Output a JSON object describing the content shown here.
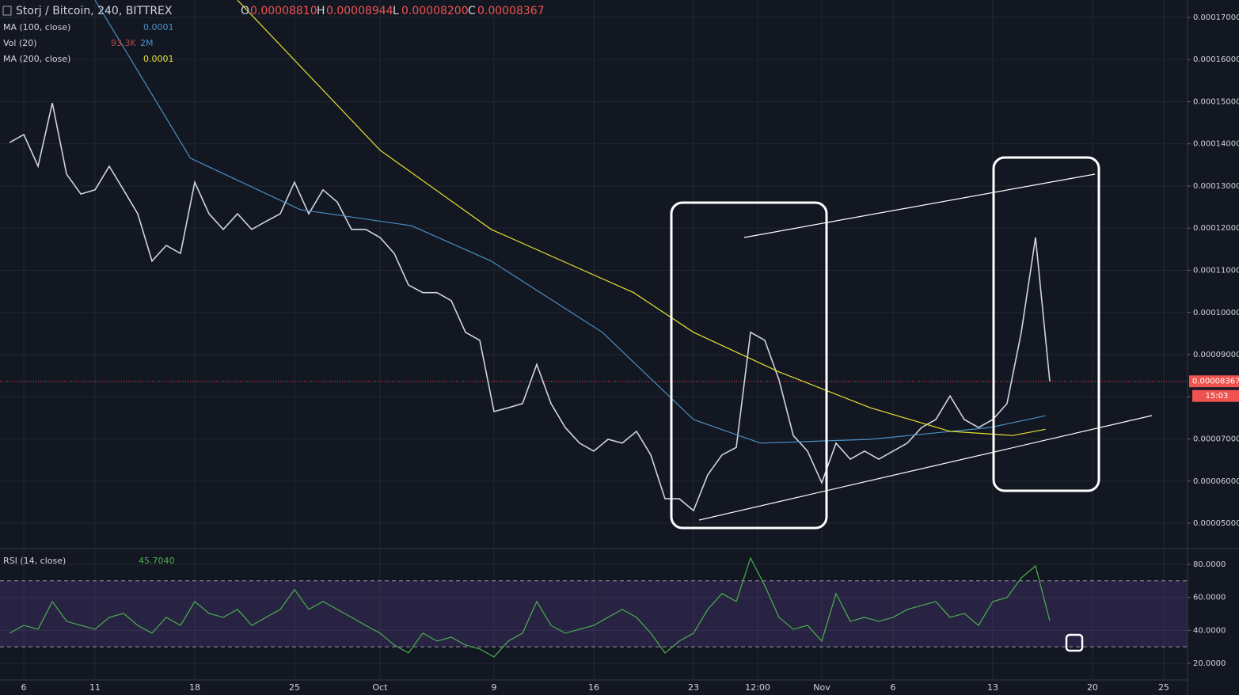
{
  "header": {
    "symbol": "Storj / Bitcoin, 240, BITTREX",
    "o_label": "O",
    "o": "0.00008810",
    "h_label": "H",
    "h": "0.00008944",
    "l_label": "L",
    "l": "0.00008200",
    "c_label": "C",
    "c": "0.00008367",
    "vol_label": "Vol (20)",
    "vol_value": "93.3K",
    "vol_ma": "2M",
    "rsi_label": "RSI (14, close)",
    "rsi_value": "45.7040",
    "countdown": "15:03"
  },
  "chart_data": [
    {
      "type": "line",
      "grid": true,
      "last_price": 8.367e-05,
      "xlim": [
        4.33,
        87.67
      ],
      "xticks": [
        {
          "value": 6,
          "label": "6"
        },
        {
          "value": 11,
          "label": "11"
        },
        {
          "value": 18,
          "label": "18"
        },
        {
          "value": 25,
          "label": "25"
        },
        {
          "value": 31,
          "label": "Oct"
        },
        {
          "value": 39,
          "label": "9"
        },
        {
          "value": 46,
          "label": "16"
        },
        {
          "value": 53,
          "label": "23"
        },
        {
          "value": 57.5,
          "label": "12:00"
        },
        {
          "value": 62,
          "label": "Nov"
        },
        {
          "value": 67,
          "label": "6"
        },
        {
          "value": 74,
          "label": "13"
        },
        {
          "value": 81,
          "label": "20"
        },
        {
          "value": 86,
          "label": "25"
        }
      ],
      "ylim": [
        4.418e-05,
        0.00017413
      ],
      "yticks": [
        {
          "value": 5e-05,
          "label": "0.00005000"
        },
        {
          "value": 6e-05,
          "label": "0.00006000"
        },
        {
          "value": 7e-05,
          "label": "0.00007000"
        },
        {
          "value": 8e-05,
          "label": "0.00008000"
        },
        {
          "value": 9e-05,
          "label": "0.00009000"
        },
        {
          "value": 0.0001,
          "label": "0.00010000"
        },
        {
          "value": 0.00011,
          "label": "0.00011000"
        },
        {
          "value": 0.00012,
          "label": "0.00012000"
        },
        {
          "value": 0.00013,
          "label": "0.00013000"
        },
        {
          "value": 0.00014,
          "label": "0.00014000"
        },
        {
          "value": 0.00015,
          "label": "0.00015000"
        },
        {
          "value": 0.00016,
          "label": "0.00016000"
        },
        {
          "value": 0.00017,
          "label": "0.00017000"
        }
      ],
      "series": [
        {
          "name": "Storj / Bitcoin",
          "color": "#d0d4dc",
          "x": [
            5,
            6,
            7,
            8,
            9,
            10,
            11,
            12,
            13,
            14,
            15,
            16,
            17,
            18,
            19,
            20,
            21,
            22,
            23,
            24,
            25,
            26,
            27,
            28,
            29,
            30,
            31,
            32,
            33,
            34,
            35,
            36,
            37,
            38,
            39,
            40,
            41,
            42,
            43,
            44,
            45,
            46,
            47,
            48,
            49,
            50,
            51,
            52,
            53,
            54,
            55,
            56,
            57,
            58,
            59,
            60,
            61,
            62,
            63,
            64,
            65,
            66,
            67,
            68,
            69,
            70,
            71,
            72,
            73,
            74,
            75,
            76,
            77,
            78
          ],
          "values": [
            0.0001403,
            0.0001422,
            0.0001347,
            0.0001497,
            0.0001328,
            0.0001281,
            0.0001291,
            0.0001347,
            0.0001291,
            0.0001234,
            0.0001122,
            0.0001159,
            0.000114,
            0.0001309,
            0.0001234,
            0.0001197,
            0.0001234,
            0.0001197,
            0.0001216,
            0.0001234,
            0.0001309,
            0.0001234,
            0.0001291,
            0.0001262,
            0.0001197,
            0.0001197,
            0.0001178,
            0.000114,
            0.0001065,
            0.0001047,
            0.0001047,
            0.0001028,
            9.53e-05,
            9.34e-05,
            7.65e-05,
            7.74e-05,
            7.84e-05,
            8.77e-05,
            7.84e-05,
            7.27e-05,
            6.9e-05,
            6.71e-05,
            6.99e-05,
            6.9e-05,
            7.18e-05,
            6.62e-05,
            5.58e-05,
            5.58e-05,
            5.3e-05,
            6.15e-05,
            6.62e-05,
            6.8e-05,
            9.53e-05,
            9.34e-05,
            8.4e-05,
            7.08e-05,
            6.71e-05,
            5.96e-05,
            6.9e-05,
            6.52e-05,
            6.71e-05,
            6.52e-05,
            6.71e-05,
            6.9e-05,
            7.27e-05,
            7.46e-05,
            8.02e-05,
            7.46e-05,
            7.27e-05,
            7.46e-05,
            7.84e-05,
            9.53e-05,
            0.0001178,
            8.367e-05
          ]
        },
        {
          "name": "MA (100, close)",
          "legend_value": "0.0001",
          "color": "#4a90c2",
          "x": [
            11,
            17.7,
            25.4,
            33.2,
            38.8,
            46.6,
            53,
            57.7,
            65.4,
            73.8,
            77.7
          ],
          "values": [
            0.0001741,
            0.0001366,
            0.0001244,
            0.0001206,
            0.0001122,
            9.53e-05,
            7.46e-05,
            6.9e-05,
            6.99e-05,
            7.27e-05,
            7.55e-05
          ]
        },
        {
          "name": "MA (200, close)",
          "legend_value": "0.0001",
          "color": "#e6e030",
          "x": [
            21,
            31,
            38.8,
            48.8,
            53,
            59,
            65.4,
            71,
            75.4,
            77.7
          ],
          "values": [
            0.0001741,
            0.0001385,
            0.0001197,
            0.0001047,
            9.53e-05,
            8.59e-05,
            7.74e-05,
            7.18e-05,
            7.08e-05,
            7.23e-05
          ]
        }
      ]
    },
    {
      "type": "line",
      "grid": true,
      "band": [
        30,
        70
      ],
      "band_color": "#7e57c2",
      "xlim": [
        4.33,
        87.67
      ],
      "ylim": [
        10.4,
        89.1
      ],
      "yticks": [
        {
          "value": 20,
          "label": "20.0000"
        },
        {
          "value": 40,
          "label": "40.0000"
        },
        {
          "value": 60,
          "label": "60.0000"
        },
        {
          "value": 80,
          "label": "80.0000"
        }
      ],
      "series": [
        {
          "name": "RSI",
          "color": "#4caf50",
          "x": [
            5,
            6,
            7,
            8,
            9,
            10,
            11,
            12,
            13,
            14,
            15,
            16,
            17,
            18,
            19,
            20,
            21,
            22,
            23,
            24,
            25,
            26,
            27,
            28,
            29,
            30,
            31,
            32,
            33,
            34,
            35,
            36,
            37,
            38,
            39,
            40,
            41,
            42,
            43,
            44,
            45,
            46,
            47,
            48,
            49,
            50,
            51,
            52,
            53,
            54,
            55,
            56,
            57,
            58,
            59,
            60,
            61,
            62,
            63,
            64,
            65,
            66,
            67,
            68,
            69,
            70,
            71,
            72,
            73,
            74,
            75,
            76,
            77,
            78
          ],
          "values": [
            38.3,
            43,
            40.7,
            57.5,
            45.5,
            43,
            40.7,
            47.9,
            50.3,
            43,
            38.3,
            47.9,
            43,
            57.5,
            50.3,
            47.9,
            52.7,
            43,
            47.9,
            52.7,
            64.7,
            52.7,
            57.5,
            52.7,
            47.9,
            43,
            38.3,
            31.1,
            26.3,
            38.3,
            33.5,
            35.9,
            31.1,
            28.7,
            23.9,
            33.5,
            38.3,
            57.5,
            43,
            38.3,
            40.7,
            43,
            47.9,
            52.7,
            47.9,
            38.3,
            26.3,
            33.5,
            38.3,
            52.7,
            62.3,
            57.5,
            83.8,
            67.1,
            47.9,
            40.7,
            43,
            33.5,
            62.3,
            45.5,
            47.9,
            45.5,
            47.9,
            52.7,
            55.1,
            57.5,
            47.9,
            50.3,
            43,
            57.5,
            59.9,
            71.8,
            79,
            45.704
          ]
        }
      ]
    }
  ]
}
